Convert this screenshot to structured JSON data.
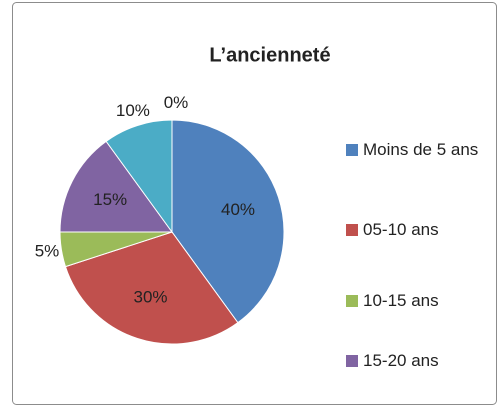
{
  "chart_data": {
    "type": "pie",
    "title": "L’ancienneté",
    "categories": [
      "Moins de 5 ans",
      "05-10 ans",
      "10-15 ans",
      "15-20 ans",
      null,
      null
    ],
    "values": [
      40,
      30,
      5,
      15,
      10,
      0
    ],
    "value_labels": [
      "40%",
      "30%",
      "5%",
      "15%",
      "10%",
      "0%"
    ],
    "colors": [
      "#4f81bd",
      "#c0504d",
      "#9bbb59",
      "#8064a2",
      "#4bacc6",
      "#f79646"
    ],
    "legend": "right"
  }
}
